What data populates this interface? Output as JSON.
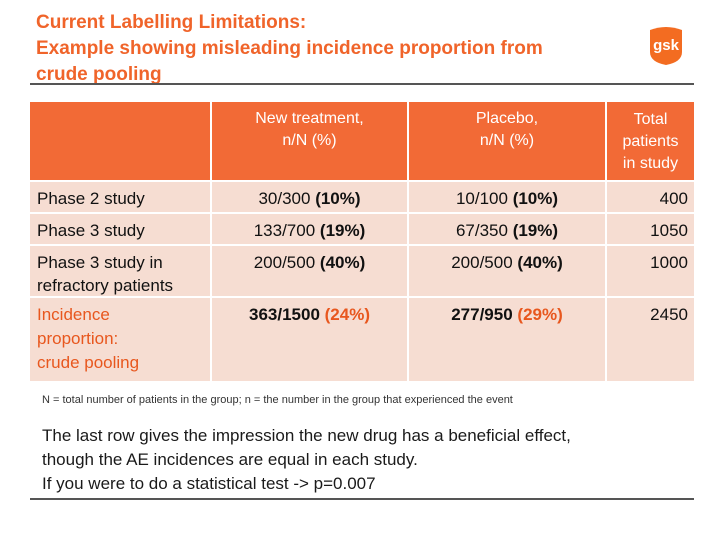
{
  "title": {
    "line1": "Current Labelling Limitations:",
    "line2": "Example showing misleading incidence proportion from",
    "line3": "crude pooling"
  },
  "logo": {
    "text": "gsk",
    "icon": "gsk-logo-icon",
    "color": "#f36c21"
  },
  "table": {
    "headers": {
      "new_line1": "New treatment,",
      "new_line2": "n/N (%)",
      "placebo_line1": "Placebo,",
      "placebo_line2": "n/N (%)",
      "total_line1": "Total",
      "total_line2": "patients",
      "total_line3": "in study"
    },
    "rows": [
      {
        "label_line1": "Phase 2 study",
        "label_line2": "",
        "label_line3": "",
        "new_count": "30/300",
        "new_pct": "(10%)",
        "placebo_count": "10/100",
        "placebo_pct": "(10%)",
        "total": "400"
      },
      {
        "label_line1": "Phase 3 study",
        "label_line2": "",
        "label_line3": "",
        "new_count": "133/700",
        "new_pct": "(19%)",
        "placebo_count": "67/350",
        "placebo_pct": "(19%)",
        "total": "1050"
      },
      {
        "label_line1": "Phase 3 study in",
        "label_line2": "refractory patients",
        "label_line3": "",
        "new_count": "200/500",
        "new_pct": "(40%)",
        "placebo_count": "200/500",
        "placebo_pct": "(40%)",
        "total": "1000"
      },
      {
        "label_line1": "Incidence",
        "label_line2": "proportion:",
        "label_line3": "crude pooling",
        "new_count": "363/1500",
        "new_pct": "(24%)",
        "placebo_count": "277/950",
        "placebo_pct": "(29%)",
        "total": "2450"
      }
    ]
  },
  "footnote": "N = total number of patients in the group; n = the number in the group that experienced the event",
  "summary": {
    "line1": "The last row gives the impression the new drug has a beneficial effect,",
    "line2": "though the AE incidences are equal in each study.",
    "line3": "If you were to do a statistical test -> p=0.007"
  },
  "colors": {
    "accent": "#f26a36",
    "cell_bg": "#f6ddd2",
    "highlight_text": "#e8571e"
  }
}
